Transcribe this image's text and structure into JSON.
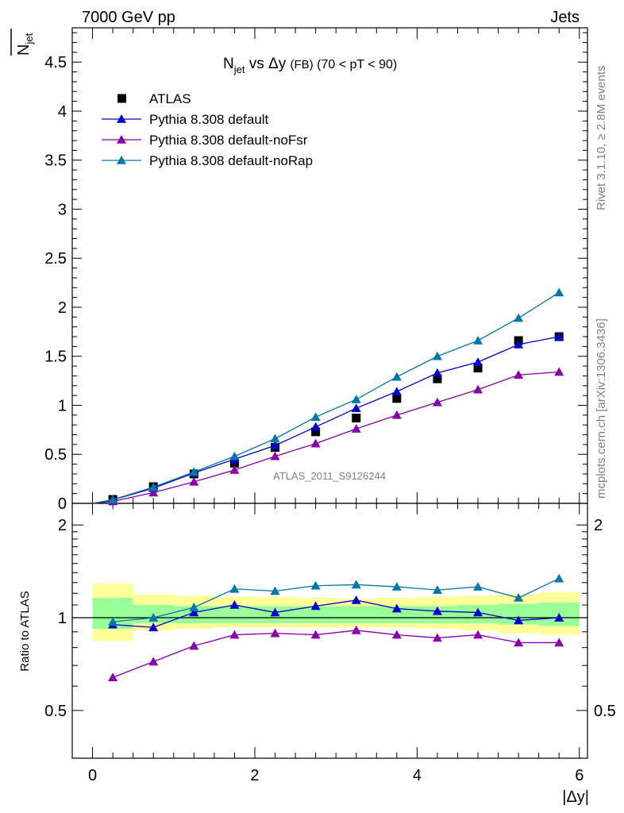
{
  "header": {
    "left": "7000 GeV pp",
    "right": "Jets"
  },
  "side_labels": {
    "rivet": "Rivet 3.1.10, ≥ 2.8M events",
    "mcplots": "mcplots.cern.ch [arXiv:1306.3436]"
  },
  "watermark": "ATLAS_2011_S9126244",
  "chart_data": [
    {
      "type": "scatter",
      "title_parts": {
        "main": "N",
        "sub": "jet",
        "rest": " vs Δy ",
        "small": "(FB)",
        "range": " (70 < pT <  90)"
      },
      "ylabel": {
        "main": "N",
        "sub": "jet"
      },
      "xlabel": "|Δy|",
      "xlim": [
        -0.25,
        6.1
      ],
      "ylim": [
        0,
        4.85
      ],
      "y_ticks": [
        0,
        0.5,
        1,
        1.5,
        2,
        2.5,
        3,
        3.5,
        4,
        4.5
      ],
      "y_tick_labels": [
        "0",
        "0.5",
        "1",
        "1.5",
        "2",
        "2.5",
        "3",
        "3.5",
        "4",
        "4.5"
      ],
      "legend_position": "top-left",
      "x": [
        0.25,
        0.75,
        1.25,
        1.75,
        2.25,
        2.75,
        3.25,
        3.75,
        4.25,
        4.75,
        5.25,
        5.75
      ],
      "series": [
        {
          "name": "ATLAS",
          "color": "#000000",
          "marker": "square",
          "line": false,
          "values": [
            0.04,
            0.17,
            0.3,
            0.41,
            0.57,
            0.73,
            0.87,
            1.07,
            1.27,
            1.38,
            1.66,
            1.7
          ]
        },
        {
          "name": "Pythia 8.308 default",
          "color": "#0000cc",
          "marker": "triangle",
          "line": true,
          "values": [
            0.035,
            0.155,
            0.31,
            0.45,
            0.59,
            0.78,
            0.97,
            1.14,
            1.33,
            1.44,
            1.62,
            1.7
          ]
        },
        {
          "name": "Pythia 8.308 default-noFsr",
          "color": "#8800aa",
          "marker": "triangle",
          "line": true,
          "values": [
            0.02,
            0.11,
            0.22,
            0.34,
            0.48,
            0.61,
            0.76,
            0.9,
            1.03,
            1.16,
            1.31,
            1.34
          ]
        },
        {
          "name": "Pythia 8.308 default-noRap",
          "color": "#0077aa",
          "marker": "triangle",
          "line": true,
          "values": [
            0.038,
            0.165,
            0.32,
            0.48,
            0.66,
            0.88,
            1.06,
            1.29,
            1.5,
            1.66,
            1.89,
            2.15
          ]
        }
      ]
    },
    {
      "type": "line",
      "ylabel": "Ratio to ATLAS",
      "xlim": [
        -0.25,
        6.1
      ],
      "ylim": [
        0.35,
        2.35
      ],
      "y_tick_labels_left": [
        "0.5",
        "1",
        "2"
      ],
      "y_tick_labels_right": [
        "0.5",
        "2"
      ],
      "y_tick_values": [
        0.5,
        1,
        2
      ],
      "x_tick_labels": [
        "0",
        "2",
        "4",
        "6"
      ],
      "x_tick_values": [
        0,
        2,
        4,
        6
      ],
      "reference_line": 1,
      "band_edges": [
        0,
        0.5,
        1,
        1.5,
        2,
        2.5,
        3,
        3.5,
        4,
        4.5,
        5,
        5.5,
        6
      ],
      "band_outer": [
        [
          0.84,
          1.29
        ],
        [
          0.91,
          1.19
        ],
        [
          0.92,
          1.18
        ],
        [
          0.93,
          1.17
        ],
        [
          0.93,
          1.17
        ],
        [
          0.93,
          1.16
        ],
        [
          0.93,
          1.15
        ],
        [
          0.93,
          1.16
        ],
        [
          0.92,
          1.17
        ],
        [
          0.91,
          1.18
        ],
        [
          0.89,
          1.19
        ],
        [
          0.88,
          1.21
        ]
      ],
      "band_inner": [
        [
          0.92,
          1.16
        ],
        [
          0.96,
          1.1
        ],
        [
          0.96,
          1.09
        ],
        [
          0.96,
          1.09
        ],
        [
          0.96,
          1.09
        ],
        [
          0.96,
          1.09
        ],
        [
          0.96,
          1.09
        ],
        [
          0.96,
          1.09
        ],
        [
          0.96,
          1.09
        ],
        [
          0.96,
          1.1
        ],
        [
          0.95,
          1.11
        ],
        [
          0.94,
          1.12
        ]
      ],
      "band_colors": {
        "outer": "#ffff99",
        "inner": "#99ff99"
      },
      "x": [
        0.25,
        0.75,
        1.25,
        1.75,
        2.25,
        2.75,
        3.25,
        3.75,
        4.25,
        4.75,
        5.25,
        5.75
      ],
      "series": [
        {
          "name": "Pythia 8.308 default",
          "color": "#0000cc",
          "values": [
            0.95,
            0.93,
            1.04,
            1.1,
            1.04,
            1.09,
            1.14,
            1.07,
            1.05,
            1.04,
            0.98,
            1.0
          ]
        },
        {
          "name": "Pythia 8.308 default-noFsr",
          "color": "#8800aa",
          "values": [
            0.64,
            0.72,
            0.81,
            0.88,
            0.89,
            0.88,
            0.91,
            0.88,
            0.86,
            0.88,
            0.83,
            0.83
          ]
        },
        {
          "name": "Pythia 8.308 default-noRap",
          "color": "#0077aa",
          "values": [
            0.97,
            1.0,
            1.08,
            1.24,
            1.22,
            1.27,
            1.28,
            1.26,
            1.23,
            1.26,
            1.16,
            1.34
          ]
        }
      ]
    }
  ]
}
